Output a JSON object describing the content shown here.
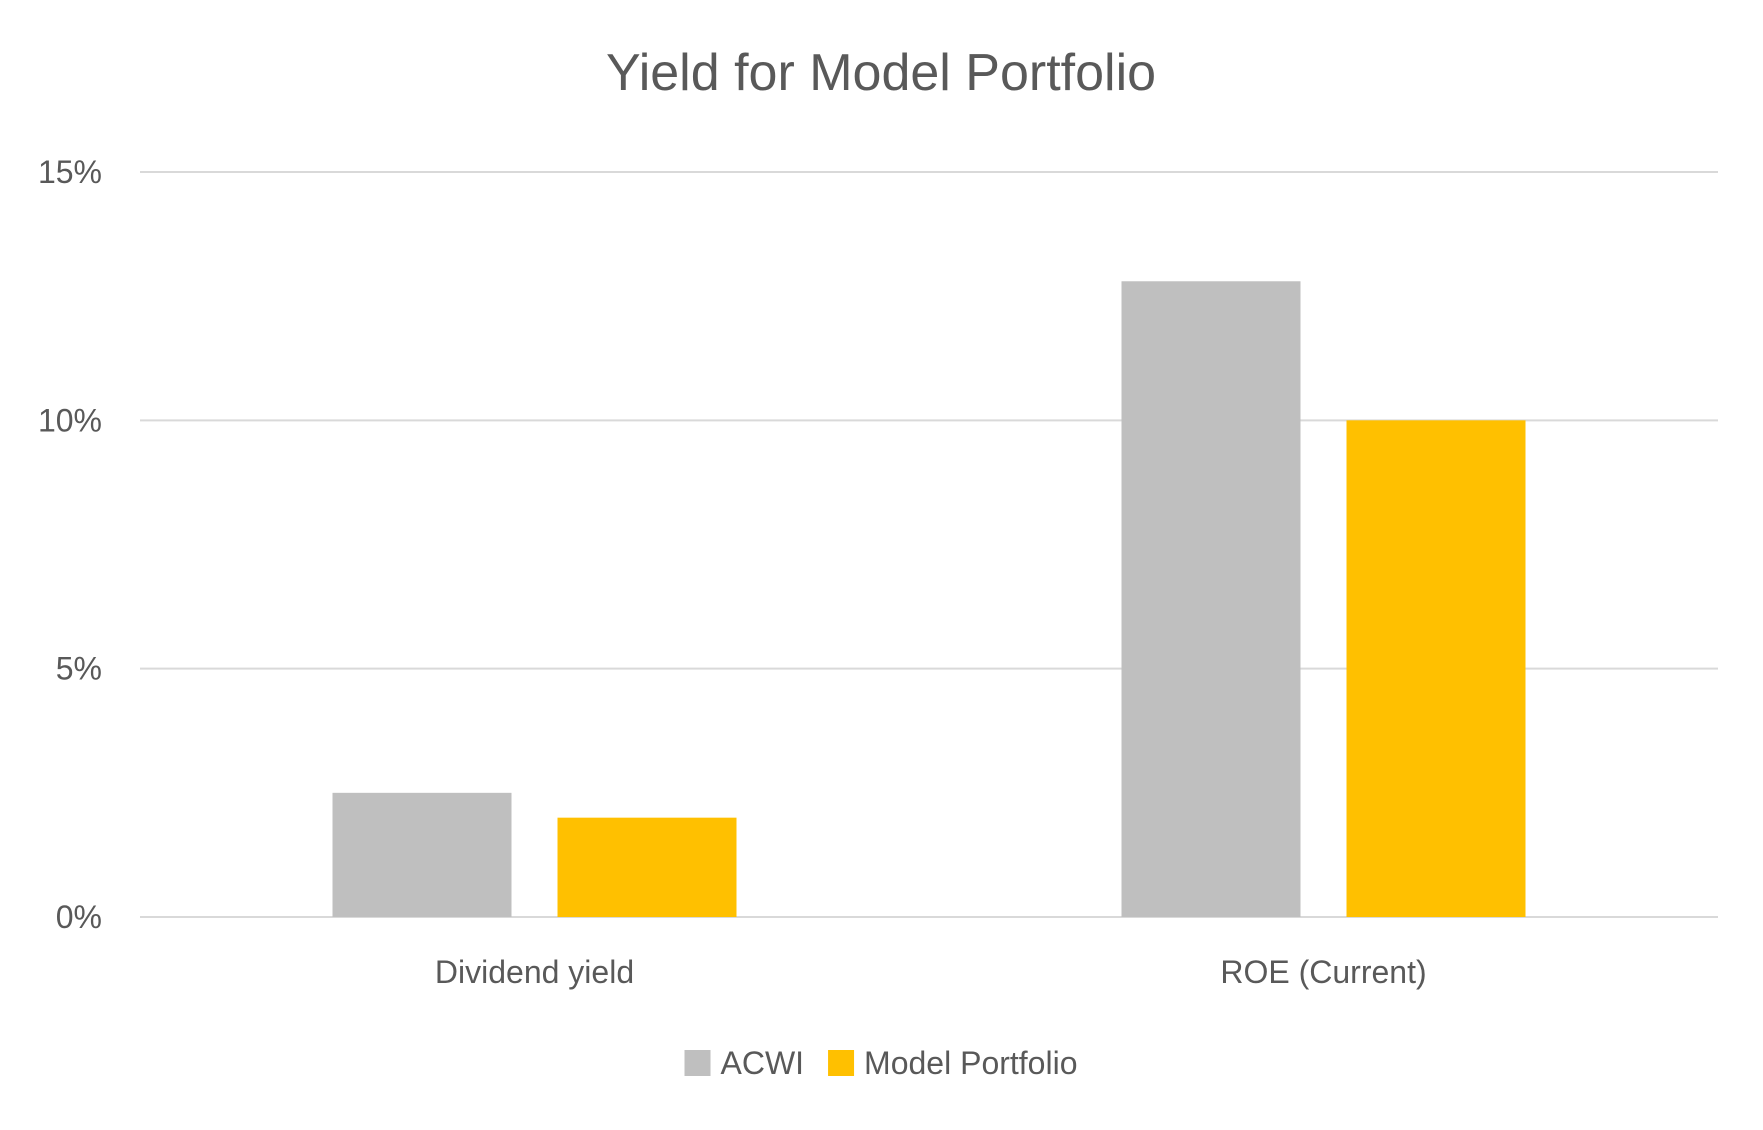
{
  "chart_data": {
    "type": "bar",
    "title": "Yield for Model Portfolio",
    "xlabel": "",
    "ylabel": "",
    "categories": [
      "Dividend yield",
      "ROE (Current)"
    ],
    "series": [
      {
        "name": "ACWI",
        "values": [
          2.5,
          12.8
        ],
        "color": "#bfbfbf"
      },
      {
        "name": "Model Portfolio",
        "values": [
          2.0,
          10.0
        ],
        "color": "#ffc000"
      }
    ],
    "ylim": [
      0,
      15
    ],
    "yticks": [
      0,
      5,
      10,
      15
    ],
    "ytick_labels": [
      "0%",
      "5%",
      "10%",
      "15%"
    ],
    "grid": true,
    "legend_position": "bottom-center"
  }
}
